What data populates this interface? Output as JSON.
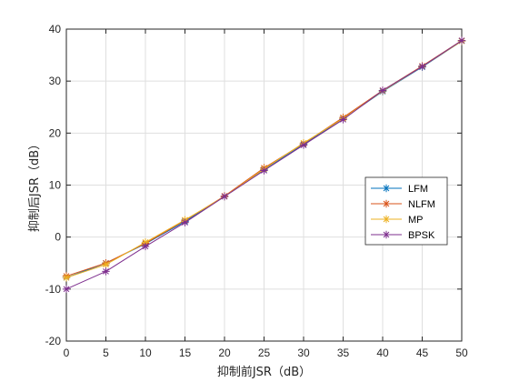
{
  "chart_data": {
    "type": "line",
    "xlabel": "抑制前JSR（dB）",
    "ylabel": "抑制后JSR（dB）",
    "xlim": [
      0,
      50
    ],
    "ylim": [
      -20,
      40
    ],
    "x_ticks": [
      "0",
      "5",
      "10",
      "15",
      "20",
      "25",
      "30",
      "35",
      "40",
      "45",
      "50"
    ],
    "y_ticks": [
      "-20",
      "-10",
      "0",
      "10",
      "20",
      "30",
      "40"
    ],
    "grid": true,
    "legend_position": "right",
    "marker": "asterisk",
    "x": [
      0,
      5,
      10,
      15,
      20,
      25,
      30,
      35,
      40,
      45,
      50
    ],
    "series": [
      {
        "name": "LFM",
        "color": "#0072BD",
        "values": [
          -7.8,
          -5.0,
          -1.3,
          3.0,
          7.8,
          13.0,
          17.8,
          22.8,
          28.0,
          32.7,
          37.7
        ]
      },
      {
        "name": "NLFM",
        "color": "#D95319",
        "values": [
          -7.5,
          -5.0,
          -1.2,
          3.2,
          7.9,
          13.3,
          18.0,
          23.0,
          28.2,
          32.9,
          37.8
        ]
      },
      {
        "name": "MP",
        "color": "#EDB120",
        "values": [
          -7.8,
          -5.3,
          -1.0,
          3.3,
          7.8,
          13.1,
          18.1,
          22.8,
          28.1,
          32.8,
          37.7
        ]
      },
      {
        "name": "BPSK",
        "color": "#7E2F8E",
        "values": [
          -10.0,
          -6.6,
          -1.8,
          2.8,
          7.8,
          12.8,
          17.7,
          22.6,
          28.2,
          32.8,
          37.8
        ]
      }
    ]
  }
}
